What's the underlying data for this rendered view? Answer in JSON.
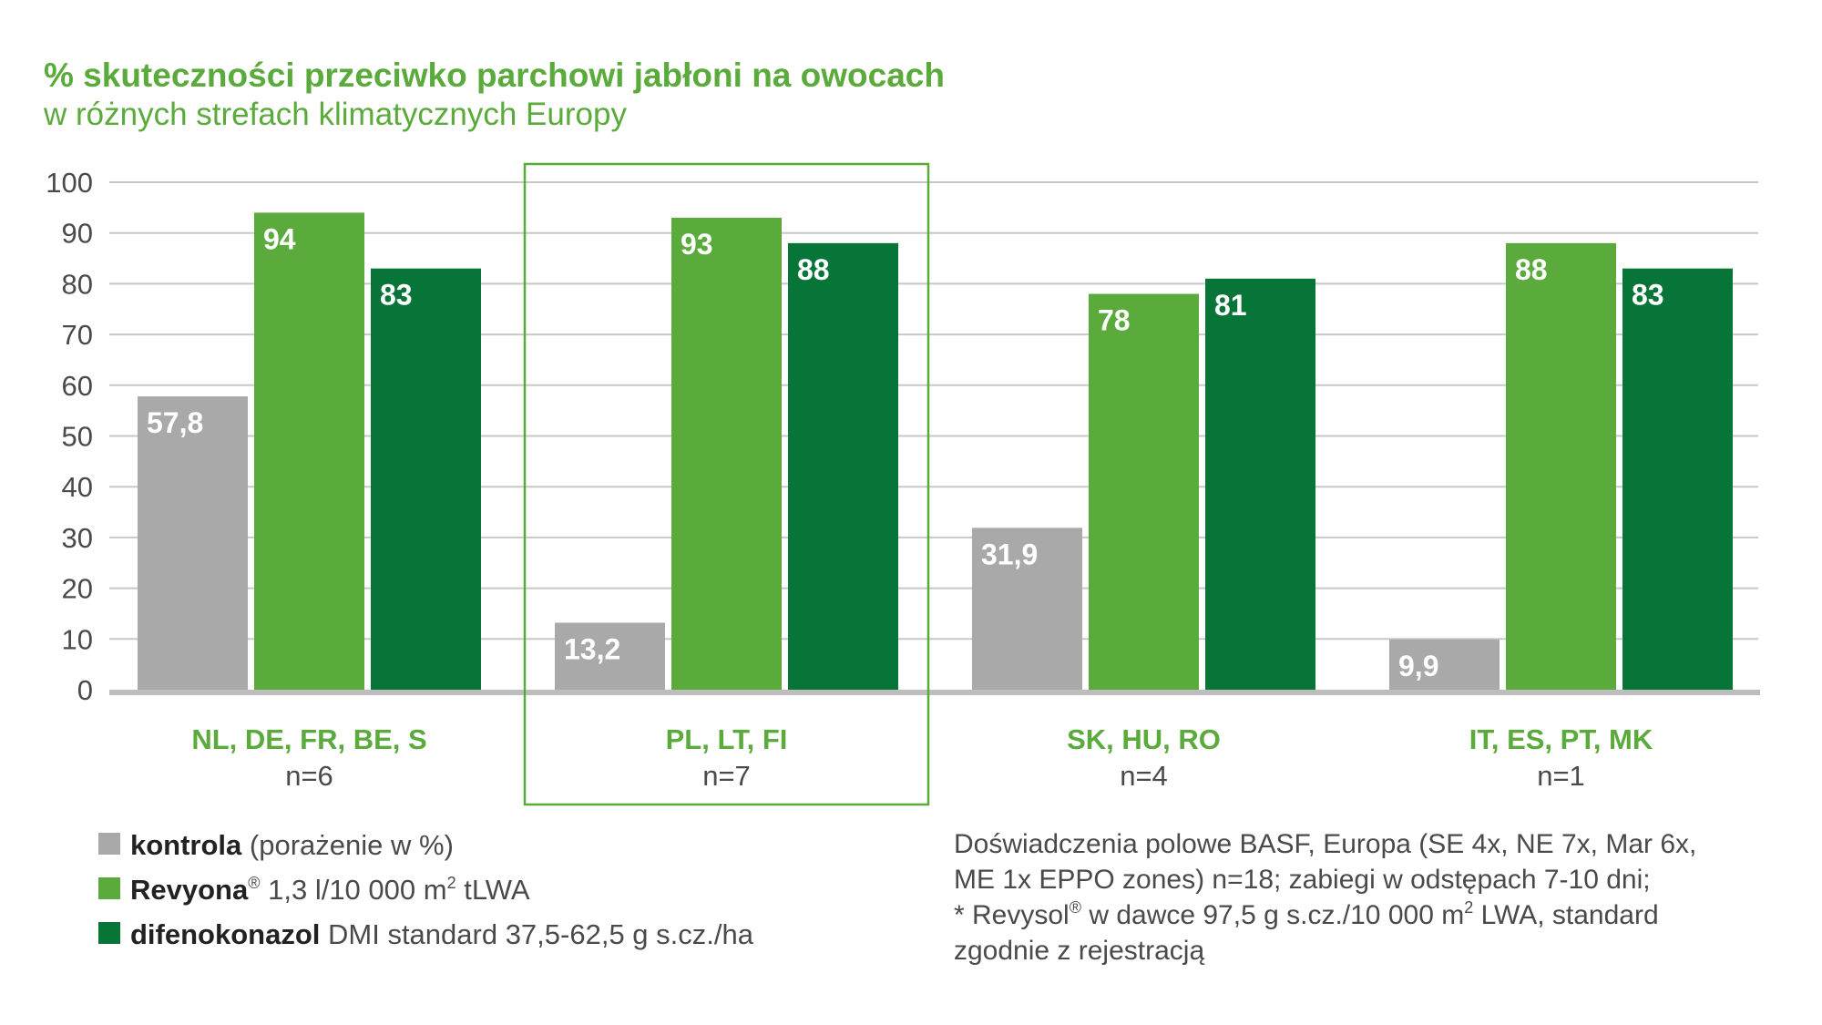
{
  "chart_data": {
    "type": "bar",
    "title": "% skuteczności przeciwko parchowi jabłoni na owocach",
    "subtitle": "w różnych strefach klimatycznych Europy",
    "categories": [
      "NL, DE, FR, BE, S",
      "PL, LT, FI",
      "SK, HU, RO",
      "IT, ES, PT, MK"
    ],
    "category_n": [
      "n=6",
      "n=7",
      "n=4",
      "n=1"
    ],
    "highlighted_category": "PL, LT, FI",
    "ylim": [
      0,
      100
    ],
    "yticks": [
      "0",
      "10",
      "20",
      "30",
      "40",
      "50",
      "60",
      "70",
      "80",
      "90",
      "100"
    ],
    "grid": true,
    "series": [
      {
        "key": "kontrola",
        "color": "#a9a9a9",
        "values": [
          57.8,
          13.2,
          31.9,
          9.9
        ],
        "labels": [
          "57,8",
          "13,2",
          "31,9",
          "9,9"
        ]
      },
      {
        "key": "revyona",
        "color": "#5aaa3c",
        "values": [
          94,
          93,
          78,
          88
        ],
        "labels": [
          "94",
          "93",
          "78",
          "88"
        ]
      },
      {
        "key": "difenokonazol",
        "color": "#087538",
        "values": [
          83,
          88,
          81,
          83
        ],
        "labels": [
          "83",
          "88",
          "81",
          "83"
        ]
      }
    ]
  },
  "legend": [
    {
      "color": "#a9a9a9",
      "bold": "kontrola",
      "rest": " (porażenie w %)",
      "sup": "",
      "after": ""
    },
    {
      "color": "#5aaa3c",
      "bold": "Revyona",
      "sup": "®",
      "rest": " 1,3 l/10 000 m",
      "after": "2",
      "tail": " tLWA"
    },
    {
      "color": "#087538",
      "bold": "difenokonazol",
      "rest": " DMI standard 37,5-62,5 g s.cz./ha",
      "sup": "",
      "after": ""
    }
  ],
  "note": {
    "line1": "Doświadczenia polowe BASF, Europa (SE 4x, NE 7x, Mar 6x,",
    "line2": "ME 1x EPPO zones) n=18; zabiegi w odstępach 7-10 dni;",
    "line3a": "* Revysol",
    "line3sup": "®",
    "line3b": " w dawce 97,5 g s.cz./10 000 m",
    "line3sup2": "2",
    "line3c": " LWA, standard",
    "line4": "zgodnie z rejestracją"
  }
}
